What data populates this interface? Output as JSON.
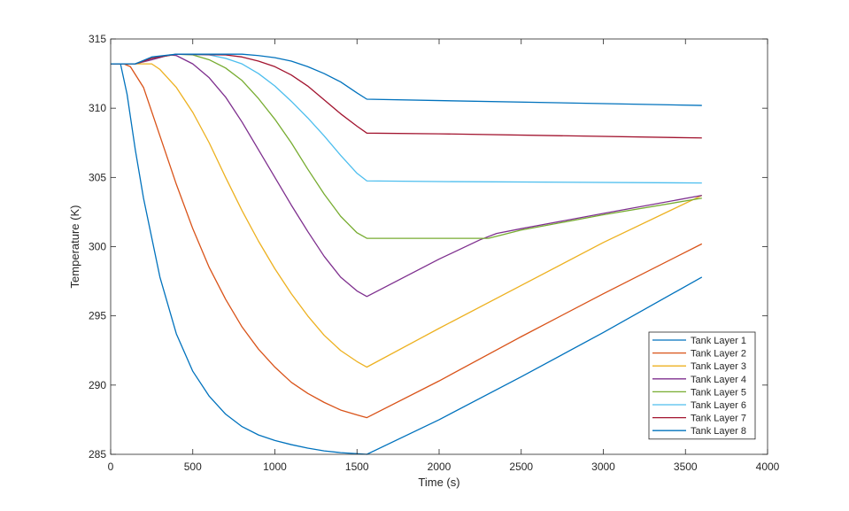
{
  "chart_data": {
    "type": "line",
    "title": "",
    "xlabel": "Time (s)",
    "ylabel": "Temperature (K)",
    "xlim": [
      0,
      4000
    ],
    "ylim": [
      285,
      315
    ],
    "xticks": [
      0,
      500,
      1000,
      1500,
      2000,
      2500,
      3000,
      3500,
      4000
    ],
    "yticks": [
      285,
      290,
      295,
      300,
      305,
      310,
      315
    ],
    "grid": false,
    "legend_position": "bottom-right",
    "series": [
      {
        "name": "Tank Layer 1",
        "color": "#0072BD",
        "points": [
          [
            0,
            313.2
          ],
          [
            60,
            313.2
          ],
          [
            100,
            311
          ],
          [
            150,
            307
          ],
          [
            200,
            303.5
          ],
          [
            300,
            297.8
          ],
          [
            400,
            293.7
          ],
          [
            500,
            291
          ],
          [
            600,
            289.2
          ],
          [
            700,
            287.9
          ],
          [
            800,
            287
          ],
          [
            900,
            286.4
          ],
          [
            1000,
            286
          ],
          [
            1100,
            285.7
          ],
          [
            1200,
            285.45
          ],
          [
            1300,
            285.25
          ],
          [
            1400,
            285.12
          ],
          [
            1500,
            285.05
          ],
          [
            1560,
            285
          ],
          [
            2000,
            287.5
          ],
          [
            2500,
            290.6
          ],
          [
            3000,
            293.8
          ],
          [
            3600,
            297.8
          ]
        ]
      },
      {
        "name": "Tank Layer 2",
        "color": "#D95319",
        "points": [
          [
            0,
            313.2
          ],
          [
            80,
            313.2
          ],
          [
            120,
            313
          ],
          [
            200,
            311.5
          ],
          [
            300,
            308
          ],
          [
            400,
            304.5
          ],
          [
            500,
            301.3
          ],
          [
            600,
            298.5
          ],
          [
            700,
            296.2
          ],
          [
            800,
            294.2
          ],
          [
            900,
            292.6
          ],
          [
            1000,
            291.3
          ],
          [
            1100,
            290.2
          ],
          [
            1200,
            289.4
          ],
          [
            1300,
            288.75
          ],
          [
            1400,
            288.2
          ],
          [
            1500,
            287.85
          ],
          [
            1560,
            287.65
          ],
          [
            2000,
            290.3
          ],
          [
            2500,
            293.5
          ],
          [
            3000,
            296.6
          ],
          [
            3600,
            300.2
          ]
        ]
      },
      {
        "name": "Tank Layer 3",
        "color": "#EDB120",
        "points": [
          [
            0,
            313.2
          ],
          [
            150,
            313.2
          ],
          [
            250,
            313.2
          ],
          [
            300,
            312.8
          ],
          [
            400,
            311.5
          ],
          [
            500,
            309.7
          ],
          [
            600,
            307.5
          ],
          [
            700,
            305
          ],
          [
            800,
            302.6
          ],
          [
            900,
            300.4
          ],
          [
            1000,
            298.4
          ],
          [
            1100,
            296.6
          ],
          [
            1200,
            295
          ],
          [
            1300,
            293.6
          ],
          [
            1400,
            292.5
          ],
          [
            1500,
            291.7
          ],
          [
            1560,
            291.3
          ],
          [
            2000,
            294.1
          ],
          [
            2500,
            297.2
          ],
          [
            3000,
            300.3
          ],
          [
            3600,
            303.7
          ]
        ]
      },
      {
        "name": "Tank Layer 4",
        "color": "#7E2F8E",
        "points": [
          [
            0,
            313.2
          ],
          [
            150,
            313.2
          ],
          [
            250,
            313.5
          ],
          [
            360,
            313.85
          ],
          [
            400,
            313.8
          ],
          [
            500,
            313.2
          ],
          [
            600,
            312.2
          ],
          [
            700,
            310.8
          ],
          [
            800,
            309
          ],
          [
            900,
            307
          ],
          [
            1000,
            305
          ],
          [
            1100,
            303
          ],
          [
            1200,
            301.1
          ],
          [
            1300,
            299.3
          ],
          [
            1400,
            297.8
          ],
          [
            1500,
            296.8
          ],
          [
            1560,
            296.4
          ],
          [
            2000,
            299.1
          ],
          [
            2250,
            300.5
          ],
          [
            2350,
            300.95
          ],
          [
            2500,
            301.3
          ],
          [
            3000,
            302.4
          ],
          [
            3600,
            303.7
          ]
        ]
      },
      {
        "name": "Tank Layer 5",
        "color": "#77AC30",
        "points": [
          [
            0,
            313.2
          ],
          [
            150,
            313.2
          ],
          [
            250,
            313.6
          ],
          [
            400,
            313.9
          ],
          [
            500,
            313.85
          ],
          [
            600,
            313.5
          ],
          [
            700,
            312.9
          ],
          [
            800,
            312
          ],
          [
            900,
            310.7
          ],
          [
            1000,
            309.2
          ],
          [
            1100,
            307.5
          ],
          [
            1200,
            305.6
          ],
          [
            1300,
            303.8
          ],
          [
            1400,
            302.2
          ],
          [
            1500,
            301
          ],
          [
            1560,
            300.6
          ],
          [
            2000,
            300.6
          ],
          [
            2300,
            300.6
          ],
          [
            2500,
            301.2
          ],
          [
            3000,
            302.3
          ],
          [
            3600,
            303.5
          ]
        ]
      },
      {
        "name": "Tank Layer 6",
        "color": "#4DBEEE",
        "points": [
          [
            0,
            313.2
          ],
          [
            150,
            313.2
          ],
          [
            250,
            313.6
          ],
          [
            400,
            313.9
          ],
          [
            600,
            313.85
          ],
          [
            700,
            313.6
          ],
          [
            800,
            313.2
          ],
          [
            900,
            312.5
          ],
          [
            1000,
            311.6
          ],
          [
            1100,
            310.5
          ],
          [
            1200,
            309.3
          ],
          [
            1300,
            308
          ],
          [
            1400,
            306.6
          ],
          [
            1500,
            305.3
          ],
          [
            1560,
            304.75
          ],
          [
            2000,
            304.7
          ],
          [
            3600,
            304.6
          ]
        ]
      },
      {
        "name": "Tank Layer 7",
        "color": "#A2142F",
        "points": [
          [
            0,
            313.2
          ],
          [
            150,
            313.2
          ],
          [
            250,
            313.6
          ],
          [
            400,
            313.9
          ],
          [
            700,
            313.85
          ],
          [
            800,
            313.7
          ],
          [
            900,
            313.4
          ],
          [
            1000,
            313
          ],
          [
            1100,
            312.4
          ],
          [
            1200,
            311.6
          ],
          [
            1300,
            310.6
          ],
          [
            1400,
            309.6
          ],
          [
            1500,
            308.7
          ],
          [
            1560,
            308.2
          ],
          [
            2000,
            308.15
          ],
          [
            3600,
            307.85
          ]
        ]
      },
      {
        "name": "Tank Layer 8",
        "color": "#0072BD",
        "points": [
          [
            0,
            313.2
          ],
          [
            150,
            313.2
          ],
          [
            250,
            313.7
          ],
          [
            400,
            313.9
          ],
          [
            800,
            313.9
          ],
          [
            900,
            313.8
          ],
          [
            1000,
            313.65
          ],
          [
            1100,
            313.4
          ],
          [
            1200,
            313
          ],
          [
            1300,
            312.5
          ],
          [
            1400,
            311.9
          ],
          [
            1500,
            311.1
          ],
          [
            1560,
            310.65
          ],
          [
            2000,
            310.55
          ],
          [
            3600,
            310.2
          ]
        ]
      }
    ]
  }
}
